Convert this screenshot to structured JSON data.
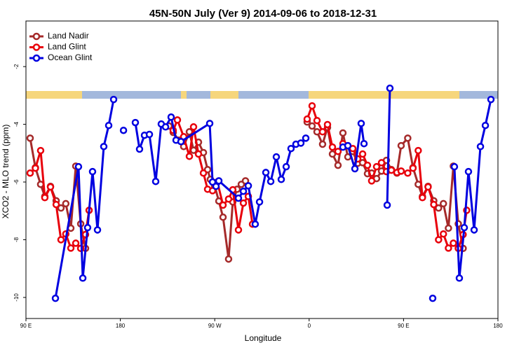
{
  "chart_data": {
    "type": "line",
    "title": "45N-50N July (Ver 9)   2014-09-06 to 2018-12-31",
    "x_label": "Longitude",
    "y_label": "XCO2 - MLO trend (ppm)",
    "xlim": [
      90,
      540
    ],
    "ylim": [
      -10.73,
      -0.42
    ],
    "xticks": [
      {
        "value": 90,
        "label": "90 E"
      },
      {
        "value": 180,
        "label": "180"
      },
      {
        "value": 270,
        "label": "90 W"
      },
      {
        "value": 360,
        "label": "0"
      },
      {
        "value": 450,
        "label": "90 E"
      },
      {
        "value": 540,
        "label": "180"
      }
    ],
    "yticks": [
      -10,
      -8,
      -6,
      -4,
      -2
    ],
    "legend": "top-left",
    "series": [
      {
        "name": "Land Nadir",
        "color": "#a52a2a",
        "x": [
          94,
          99,
          104,
          108,
          113.4,
          118.8,
          123.4,
          128,
          132.8,
          137.5,
          142.2,
          146.8,
          null,
          226.4,
          230.4,
          235.8,
          240.4,
          245.8,
          249.8,
          254.5,
          259.2,
          263.2,
          265.8,
          269.9,
          273.9,
          277.9,
          283.2,
          287.2,
          291.3,
          295.3,
          299.3,
          null,
          358.1,
          362.8,
          367.5,
          372.8,
          377.5,
          382.2,
          387.5,
          392.2,
          396.9,
          401.6,
          406.3,
          411,
          415.6,
          419.6,
          424.3,
          429,
          433.7,
          438.4,
          443.7,
          447.7,
          454,
          459,
          464,
          468,
          473.4,
          478.8,
          483.4,
          488,
          492.8,
          497.5,
          502.2,
          506.8
        ],
        "values": [
          -4.48,
          -5.5,
          -6.08,
          -6.5,
          -6.15,
          -6.65,
          -6.9,
          -6.75,
          -7.6,
          -5.45,
          -7.45,
          -8.3,
          null,
          -4.06,
          -4.28,
          -4.55,
          -4.77,
          -4.26,
          -4.9,
          -4.62,
          -4.98,
          -5.57,
          -5.91,
          -6.13,
          -6.66,
          -7.22,
          -8.67,
          -6.69,
          -6.25,
          -6.08,
          -5.96,
          null,
          -3.92,
          -4.06,
          -4.26,
          -4.69,
          -4.11,
          -5.03,
          -5.42,
          -4.3,
          -5.13,
          -4.94,
          -5.35,
          -5.33,
          -5.71,
          -5.69,
          -5.88,
          -5.62,
          -5.25,
          -5.57,
          -5.69,
          -4.74,
          -4.48,
          -5.5,
          -6.08,
          -6.5,
          -6.15,
          -6.65,
          -6.9,
          -6.75,
          -7.6,
          -5.45,
          -7.45,
          -8.3
        ]
      },
      {
        "name": "Land Glint",
        "color": "#e8000b",
        "x": [
          94,
          99,
          104,
          108,
          113.4,
          118.8,
          123.4,
          128,
          132.8,
          137.5,
          142.2,
          146.8,
          150.2,
          null,
          230.4,
          234.4,
          240.4,
          245.8,
          249.8,
          254.5,
          259.2,
          263.2,
          267.9,
          272.5,
          277.9,
          283.2,
          287.2,
          292.6,
          297.3,
          302,
          306,
          null,
          358.1,
          362.8,
          367.5,
          372.8,
          377.5,
          382.2,
          387.5,
          392.2,
          396.9,
          401.6,
          406.3,
          411,
          415.6,
          419.6,
          424.3,
          429,
          433.7,
          438.4,
          443.7,
          447.7,
          454,
          459,
          464,
          468,
          473.4,
          478.8,
          483.4,
          488,
          492.8,
          497.5,
          502.2,
          506.8,
          510.2
        ],
        "values": [
          -5.69,
          -5.52,
          -4.91,
          -6.54,
          -6.17,
          -6.78,
          -8.0,
          -7.8,
          -8.29,
          -8.12,
          -8.3,
          -7.82,
          -6.98,
          null,
          -4.21,
          -3.85,
          -4.43,
          -5.11,
          -4.09,
          -5.03,
          -5.69,
          -6.25,
          -6.3,
          -6.0,
          -6.8,
          -6.59,
          -6.27,
          -7.66,
          -6.73,
          -6.5,
          -7.46,
          null,
          -3.82,
          -3.36,
          -3.87,
          -4.26,
          -4.01,
          -4.79,
          -4.94,
          -4.67,
          -4.74,
          -4.84,
          -5.2,
          -5.03,
          -5.42,
          -5.96,
          -5.47,
          -5.33,
          -5.64,
          -5.59,
          -5.67,
          -5.62,
          -5.69,
          -5.52,
          -4.91,
          -6.54,
          -6.17,
          -6.78,
          -8.0,
          -7.8,
          -8.29,
          -8.12,
          -8.3,
          -7.82,
          -6.98
        ]
      },
      {
        "name": "Ocean Glint",
        "color": "#0000e0",
        "x": [
          118.1,
          140.1,
          144.2,
          148.8,
          153.5,
          158.2,
          164.2,
          168.9,
          173.6,
          null,
          183,
          null,
          194.3,
          198.3,
          203,
          207.7,
          213.7,
          219,
          223.1,
          228.4,
          233.1,
          237.8,
          265.2,
          267.9,
          271.2,
          273.9,
          292.6,
          297.3,
          302,
          308.6,
          312.7,
          318.7,
          323.4,
          328.7,
          333.4,
          338.1,
          342.7,
          347.4,
          352.1,
          356.8,
          null,
          392.2,
          396.9,
          403.6,
          409.6,
          412.3,
          null,
          434.4,
          437,
          null,
          477.8,
          null,
          498.5,
          503.2,
          507.9,
          511.9,
          517.3,
          523.3,
          528,
          533.3
        ],
        "values": [
          -10.03,
          -5.47,
          -9.33,
          -7.58,
          -5.64,
          -7.66,
          -4.77,
          -4.04,
          -3.14,
          null,
          -4.21,
          null,
          -3.94,
          -4.86,
          -4.38,
          -4.35,
          -5.98,
          -3.99,
          -4.09,
          -3.75,
          -4.55,
          -4.6,
          -3.97,
          -6.0,
          -6.15,
          -5.96,
          -6.56,
          -6.32,
          -6.13,
          -7.46,
          -6.69,
          -5.67,
          -5.98,
          -5.13,
          -5.91,
          -5.47,
          -4.84,
          -4.69,
          -4.65,
          -4.48,
          null,
          -4.79,
          -4.74,
          -5.54,
          -3.97,
          -4.67,
          null,
          -6.8,
          -2.75,
          null,
          -10.03,
          null,
          -5.47,
          -9.33,
          -7.58,
          -5.64,
          -7.66,
          -4.77,
          -4.04,
          -3.14
        ]
      }
    ]
  }
}
